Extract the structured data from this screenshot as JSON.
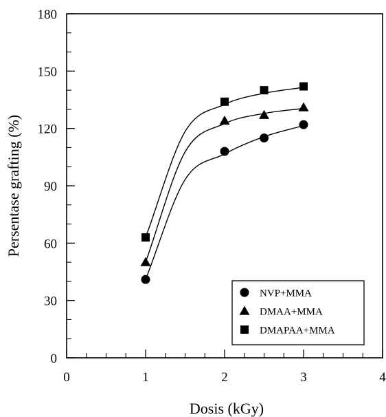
{
  "chart_data": {
    "type": "scatter",
    "title": "",
    "xlabel": "Dosis (kGy)",
    "ylabel": "Persentase grafting (%)",
    "xlim": [
      0,
      4
    ],
    "ylim": [
      0,
      180
    ],
    "xticks": [
      "0",
      "1",
      "2",
      "3",
      "4"
    ],
    "yticks": [
      "0",
      "30",
      "60",
      "90",
      "120",
      "150",
      "180"
    ],
    "grid": false,
    "legend_position": "bottom-right",
    "series": [
      {
        "name": "NVP+MMA",
        "marker": "circle",
        "x": [
          1,
          2,
          2.5,
          3
        ],
        "y": [
          41,
          108,
          115,
          122
        ],
        "fit_curve": true
      },
      {
        "name": "DMAA+MMA",
        "marker": "triangle",
        "x": [
          1,
          2,
          2.5,
          3
        ],
        "y": [
          50,
          124,
          127,
          131
        ],
        "fit_curve": true
      },
      {
        "name": "DMAPAA+MMA",
        "marker": "square",
        "x": [
          1,
          2,
          2.5,
          3
        ],
        "y": [
          63,
          134,
          140,
          142
        ],
        "fit_curve": true
      }
    ]
  }
}
